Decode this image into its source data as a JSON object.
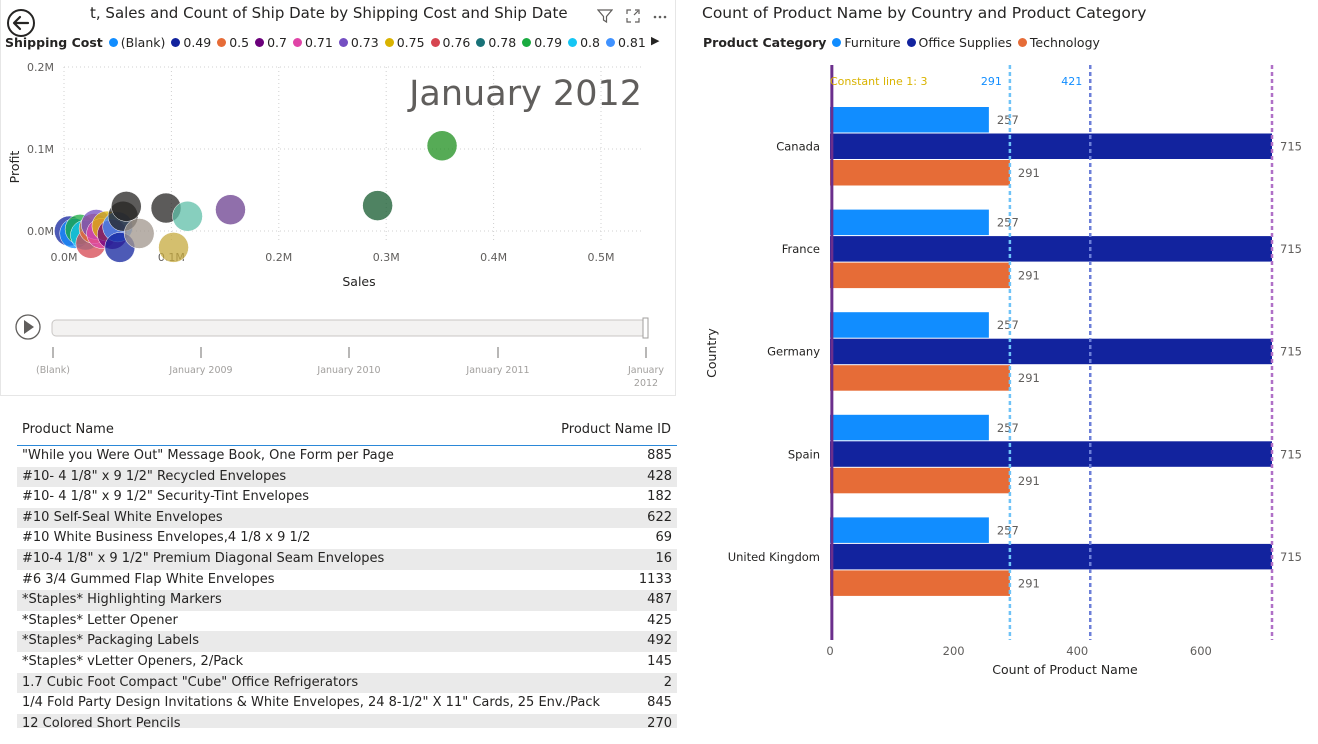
{
  "scatter": {
    "title": "t, Sales and Count of Ship Date by Shipping Cost and Ship Date",
    "legend_title": "Shipping Cost",
    "legend": [
      {
        "label": "(Blank)",
        "color": "#118DFF"
      },
      {
        "label": "0.49",
        "color": "#12239E"
      },
      {
        "label": "0.5",
        "color": "#E66C37"
      },
      {
        "label": "0.7",
        "color": "#6B007B"
      },
      {
        "label": "0.71",
        "color": "#E044A7"
      },
      {
        "label": "0.73",
        "color": "#744EC2"
      },
      {
        "label": "0.75",
        "color": "#D9B300"
      },
      {
        "label": "0.76",
        "color": "#D64550"
      },
      {
        "label": "0.78",
        "color": "#197278"
      },
      {
        "label": "0.79",
        "color": "#1AAB40"
      },
      {
        "label": "0.8",
        "color": "#15C6F4"
      },
      {
        "label": "0.81",
        "color": "#4092FF"
      }
    ],
    "play_axis_label": "January 2012",
    "xlabel": "Sales",
    "ylabel": "Profit",
    "xticks": [
      "0.0M",
      "0.1M",
      "0.2M",
      "0.3M",
      "0.4M",
      "0.5M"
    ],
    "yticks": [
      "0.2M",
      "0.1M",
      "0.0M"
    ],
    "timeline_labels": [
      "(Blank)",
      "January 2009",
      "January 2010",
      "January 2011",
      "January 2012"
    ],
    "bubbles": [
      {
        "x": 0.005,
        "y": 0.0,
        "color": "#12239E"
      },
      {
        "x": 0.01,
        "y": -0.003,
        "color": "#118DFF"
      },
      {
        "x": 0.015,
        "y": 0.002,
        "color": "#1AAB40"
      },
      {
        "x": 0.02,
        "y": -0.005,
        "color": "#15C6F4"
      },
      {
        "x": 0.025,
        "y": -0.015,
        "color": "#D64550"
      },
      {
        "x": 0.028,
        "y": 0.003,
        "color": "#E66C37"
      },
      {
        "x": 0.03,
        "y": 0.008,
        "color": "#744EC2"
      },
      {
        "x": 0.035,
        "y": -0.003,
        "color": "#E044A7"
      },
      {
        "x": 0.04,
        "y": 0.006,
        "color": "#D9B300"
      },
      {
        "x": 0.045,
        "y": -0.004,
        "color": "#6B007B"
      },
      {
        "x": 0.05,
        "y": 0.005,
        "color": "#4092FF"
      },
      {
        "x": 0.052,
        "y": -0.02,
        "color": "#12239E"
      },
      {
        "x": 0.055,
        "y": 0.018,
        "color": "#252423"
      },
      {
        "x": 0.07,
        "y": -0.003,
        "color": "#A0968C"
      },
      {
        "x": 0.058,
        "y": 0.03,
        "color": "#252423"
      },
      {
        "x": 0.095,
        "y": 0.028,
        "color": "#252423"
      },
      {
        "x": 0.115,
        "y": 0.018,
        "color": "#5FBFA8"
      },
      {
        "x": 0.102,
        "y": -0.02,
        "color": "#C6A93E"
      },
      {
        "x": 0.155,
        "y": 0.026,
        "color": "#6B3F8F"
      },
      {
        "x": 0.292,
        "y": 0.031,
        "color": "#145A2E"
      },
      {
        "x": 0.352,
        "y": 0.104,
        "color": "#1E8F1E"
      }
    ]
  },
  "table": {
    "col1": "Product Name",
    "col2": "Product Name ID",
    "rows": [
      [
        "\"While you Were Out\" Message Book, One Form per Page",
        "885"
      ],
      [
        "#10- 4 1/8\" x 9 1/2\" Recycled Envelopes",
        "428"
      ],
      [
        "#10- 4 1/8\" x 9 1/2\" Security-Tint Envelopes",
        "182"
      ],
      [
        "#10 Self-Seal White Envelopes",
        "622"
      ],
      [
        "#10 White Business Envelopes,4 1/8 x 9 1/2",
        "69"
      ],
      [
        "#10-4 1/8\" x 9 1/2\" Premium Diagonal Seam Envelopes",
        "16"
      ],
      [
        "#6 3/4 Gummed Flap White Envelopes",
        "1133"
      ],
      [
        "*Staples* Highlighting Markers",
        "487"
      ],
      [
        "*Staples* Letter Opener",
        "425"
      ],
      [
        "*Staples* Packaging Labels",
        "492"
      ],
      [
        "*Staples* vLetter Openers, 2/Pack",
        "145"
      ],
      [
        "1.7 Cubic Foot Compact \"Cube\" Office Refrigerators",
        "2"
      ],
      [
        "1/4 Fold Party Design Invitations & White Envelopes, 24 8-1/2\" X 11\" Cards, 25 Env./Pack",
        "845"
      ],
      [
        "12 Colored Short Pencils",
        "270"
      ]
    ]
  },
  "bar": {
    "title": "Count of Product Name by Country and Product Category",
    "legend_title": "Product Category",
    "legend": [
      {
        "label": "Furniture",
        "color": "#118DFF"
      },
      {
        "label": "Office Supplies",
        "color": "#12239E"
      },
      {
        "label": "Technology",
        "color": "#E66C37"
      }
    ],
    "xlabel": "Count of Product Name",
    "ylabel": "Country",
    "xticks": [
      "0",
      "200",
      "400",
      "600"
    ],
    "constant_label": "Constant line 1: 3",
    "refline_labels": [
      "291",
      "421"
    ]
  },
  "chart_data": {
    "type": "bar",
    "orientation": "horizontal",
    "title": "Count of Product Name by Country and Product Category",
    "xlabel": "Count of Product Name",
    "ylabel": "Country",
    "categories": [
      "Canada",
      "France",
      "Germany",
      "Spain",
      "United Kingdom"
    ],
    "series": [
      {
        "name": "Furniture",
        "values": [
          257,
          257,
          257,
          257,
          257
        ]
      },
      {
        "name": "Office Supplies",
        "values": [
          715,
          715,
          715,
          715,
          715
        ]
      },
      {
        "name": "Technology",
        "values": [
          291,
          291,
          291,
          291,
          291
        ]
      }
    ],
    "xlim": [
      0,
      715
    ],
    "reference_lines": [
      3,
      291,
      421,
      715
    ],
    "legend": "top"
  }
}
